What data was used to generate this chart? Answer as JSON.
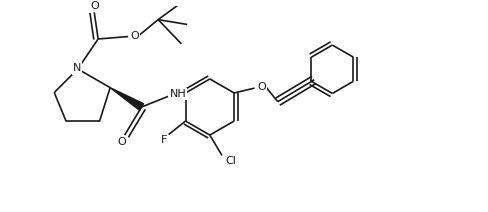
{
  "bg_color": "#ffffff",
  "line_color": "#1a1a1a",
  "fig_width": 4.88,
  "fig_height": 2.12,
  "dpi": 100,
  "xlim": [
    0,
    9.76
  ],
  "ylim": [
    0,
    4.24
  ]
}
